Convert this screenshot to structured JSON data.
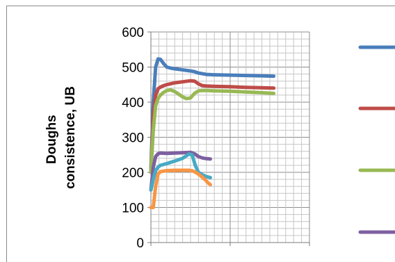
{
  "chart_data": {
    "type": "line",
    "title": "",
    "ylabel": "Doughs consistence, UB",
    "ylabel_lines": [
      "Doughs",
      "consistence, UB"
    ],
    "xlabel": "",
    "ylim": [
      0,
      600
    ],
    "xlim": [
      0,
      20
    ],
    "y_ticks": [
      0,
      100,
      200,
      300,
      400,
      500,
      600
    ],
    "grid": true,
    "legend_position": "right",
    "series": [
      {
        "color": "#4a7ebb",
        "x": [
          0,
          0.3,
          0.6,
          0.9,
          1.2,
          1.6,
          2,
          2.5,
          3,
          4,
          5,
          5.5,
          6,
          6.5,
          7,
          8,
          10,
          12,
          14,
          15.5
        ],
        "y": [
          210,
          400,
          500,
          523,
          522,
          510,
          500,
          497,
          495,
          492,
          489,
          487,
          483,
          481,
          479,
          478,
          477,
          476,
          475,
          474
        ]
      },
      {
        "color": "#be4b48",
        "x": [
          0,
          0.3,
          0.6,
          0.9,
          1.2,
          1.6,
          2,
          3,
          4,
          5,
          5.5,
          6,
          6.5,
          7,
          8,
          10,
          12,
          14,
          15.5
        ],
        "y": [
          200,
          360,
          420,
          438,
          443,
          447,
          450,
          455,
          458,
          461,
          460,
          452,
          447,
          446,
          445,
          444,
          442,
          441,
          440
        ]
      },
      {
        "color": "#98b954",
        "x": [
          0,
          0.3,
          0.6,
          0.9,
          1.2,
          1.6,
          2,
          2.5,
          3,
          3.5,
          4,
          4.5,
          5,
          5.5,
          6,
          6.5,
          7,
          8,
          10,
          12,
          14,
          15.5
        ],
        "y": [
          200,
          320,
          390,
          410,
          420,
          428,
          433,
          435,
          430,
          423,
          415,
          410,
          412,
          425,
          432,
          433,
          433,
          432,
          431,
          429,
          427,
          425
        ]
      },
      {
        "color": "#7d60a0",
        "x": [
          0,
          0.3,
          0.6,
          0.9,
          1.2,
          2,
          3,
          4,
          5,
          5.5,
          6,
          6.5,
          7,
          7.5
        ],
        "y": [
          150,
          215,
          245,
          253,
          255,
          254,
          255,
          256,
          257,
          253,
          245,
          241,
          239,
          238
        ]
      },
      {
        "color": "#46aac5",
        "x": [
          0,
          0.3,
          0.6,
          0.9,
          1.2,
          2,
          3,
          4,
          4.8,
          5.2,
          5.6,
          6,
          6.5,
          7,
          7.5
        ],
        "y": [
          150,
          180,
          205,
          215,
          220,
          225,
          232,
          240,
          252,
          250,
          220,
          200,
          193,
          188,
          185
        ]
      },
      {
        "color": "#f79646",
        "x": [
          0,
          0.3,
          0.6,
          0.9,
          1.2,
          2,
          3,
          4,
          4.8,
          5.3,
          5.8,
          6.3,
          6.8,
          7.2,
          7.5
        ],
        "y": [
          100,
          100,
          160,
          195,
          202,
          205,
          206,
          206,
          206,
          204,
          198,
          190,
          180,
          170,
          165
        ]
      }
    ],
    "legend_colors": [
      "#4a7ebb",
      "#be4b48",
      "#98b954",
      "#7d60a0"
    ]
  }
}
